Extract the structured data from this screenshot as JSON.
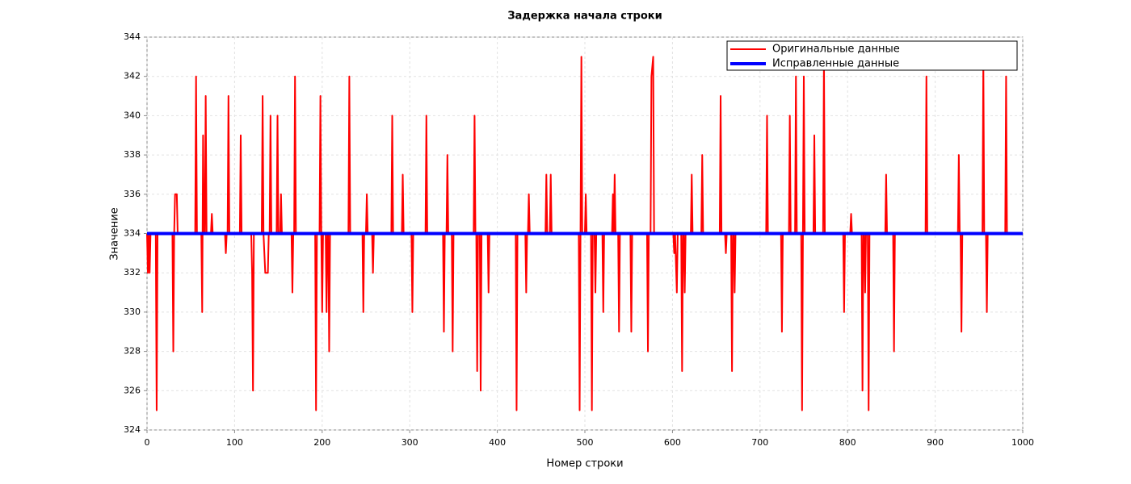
{
  "chart_data": {
    "type": "line",
    "title": "Задержка начала строки",
    "x_label": "Номер строки",
    "y_label": "Значение",
    "xlim": [
      0,
      1000
    ],
    "xticks": [
      0,
      100,
      200,
      300,
      400,
      500,
      600,
      700,
      800,
      900,
      1000
    ],
    "ylim": [
      324,
      344
    ],
    "yticks": [
      324,
      326,
      328,
      330,
      332,
      334,
      336,
      338,
      340,
      342,
      344
    ],
    "grid": true,
    "legend": "upper right",
    "series": [
      {
        "name": "Оригинальные данные",
        "color": "#ff0000",
        "x": [
          0,
          1,
          2,
          3,
          4,
          10,
          11,
          12,
          29,
          30,
          31,
          32,
          34,
          35,
          55,
          56,
          57,
          62,
          63,
          64,
          65,
          66,
          67,
          68,
          73,
          74,
          75,
          89,
          90,
          91,
          92,
          93,
          94,
          106,
          107,
          108,
          119,
          120,
          121,
          122,
          131,
          132,
          133,
          135,
          138,
          139,
          140,
          141,
          142,
          148,
          149,
          150,
          152,
          153,
          154,
          165,
          166,
          167,
          168,
          169,
          170,
          192,
          193,
          194,
          197,
          198,
          199,
          200,
          201,
          204,
          205,
          206,
          207,
          208,
          209,
          230,
          231,
          232,
          246,
          247,
          248,
          250,
          251,
          252,
          257,
          258,
          259,
          279,
          280,
          281,
          291,
          292,
          293,
          302,
          303,
          304,
          318,
          319,
          320,
          338,
          339,
          340,
          342,
          343,
          344,
          348,
          349,
          350,
          373,
          374,
          375,
          376,
          377,
          378,
          380,
          381,
          382,
          389,
          390,
          391,
          421,
          422,
          423,
          432,
          433,
          434,
          435,
          436,
          437,
          455,
          456,
          457,
          460,
          461,
          462,
          493,
          494,
          495,
          496,
          497,
          500,
          501,
          502,
          507,
          508,
          509,
          511,
          512,
          513,
          520,
          521,
          522,
          531,
          532,
          533,
          534,
          535,
          538,
          539,
          540,
          552,
          553,
          554,
          571,
          572,
          573,
          575,
          576,
          578,
          579,
          601,
          602,
          603,
          605,
          606,
          610,
          611,
          612,
          613,
          614,
          615,
          621,
          622,
          623,
          633,
          634,
          635,
          654,
          655,
          656,
          660,
          661,
          662,
          667,
          668,
          669,
          670,
          671,
          672,
          707,
          708,
          709,
          724,
          725,
          726,
          733,
          734,
          735,
          740,
          741,
          742,
          747,
          748,
          749,
          750,
          751,
          761,
          762,
          763,
          772,
          773,
          774,
          795,
          796,
          797,
          803,
          804,
          805,
          816,
          817,
          818,
          819,
          820,
          821,
          823,
          824,
          825,
          843,
          844,
          845,
          852,
          853,
          854,
          889,
          890,
          891,
          926,
          927,
          928,
          929,
          930,
          931,
          954,
          955,
          956,
          958,
          959,
          960,
          980,
          981,
          982,
          1000
        ],
        "values": [
          334,
          332,
          334,
          332,
          334,
          334,
          325,
          334,
          334,
          328,
          334,
          336,
          336,
          334,
          334,
          342,
          334,
          334,
          330,
          339,
          334,
          334,
          341,
          334,
          334,
          335,
          334,
          334,
          333,
          334,
          334,
          341,
          334,
          334,
          339,
          334,
          334,
          332,
          326,
          334,
          334,
          341,
          334,
          332,
          332,
          334,
          334,
          340,
          334,
          334,
          340,
          334,
          334,
          336,
          334,
          334,
          331,
          334,
          334,
          342,
          334,
          334,
          325,
          334,
          334,
          341,
          334,
          330,
          334,
          334,
          330,
          334,
          334,
          328,
          334,
          334,
          342,
          334,
          334,
          330,
          334,
          334,
          336,
          334,
          334,
          332,
          334,
          334,
          340,
          334,
          334,
          337,
          334,
          334,
          330,
          334,
          334,
          340,
          334,
          334,
          329,
          334,
          334,
          338,
          334,
          334,
          328,
          334,
          334,
          340,
          334,
          334,
          327,
          334,
          334,
          326,
          334,
          334,
          331,
          334,
          334,
          325,
          334,
          334,
          331,
          334,
          334,
          336,
          334,
          334,
          337,
          334,
          334,
          337,
          334,
          334,
          325,
          334,
          343,
          334,
          334,
          336,
          334,
          334,
          325,
          334,
          334,
          331,
          334,
          334,
          330,
          334,
          334,
          336,
          334,
          337,
          334,
          334,
          329,
          334,
          334,
          329,
          334,
          334,
          328,
          334,
          334,
          342,
          343,
          334,
          334,
          333,
          334,
          331,
          334,
          334,
          327,
          334,
          334,
          331,
          334,
          334,
          337,
          334,
          334,
          338,
          334,
          334,
          341,
          334,
          334,
          333,
          334,
          334,
          327,
          334,
          334,
          331,
          334,
          334,
          340,
          334,
          334,
          329,
          334,
          334,
          340,
          334,
          334,
          342,
          334,
          334,
          325,
          334,
          342,
          334,
          334,
          339,
          334,
          334,
          343,
          334,
          334,
          330,
          334,
          334,
          335,
          334,
          334,
          326,
          334,
          334,
          331,
          334,
          334,
          325,
          334,
          334,
          337,
          334,
          334,
          328,
          334,
          334,
          342,
          334,
          334,
          338,
          334,
          334,
          329,
          334,
          334,
          343,
          334,
          334,
          330,
          334,
          334,
          342,
          334,
          334
        ]
      },
      {
        "name": "Исправленные данные",
        "color": "#0000ff",
        "x": [
          0,
          1000
        ],
        "values": [
          334,
          334
        ]
      }
    ]
  }
}
